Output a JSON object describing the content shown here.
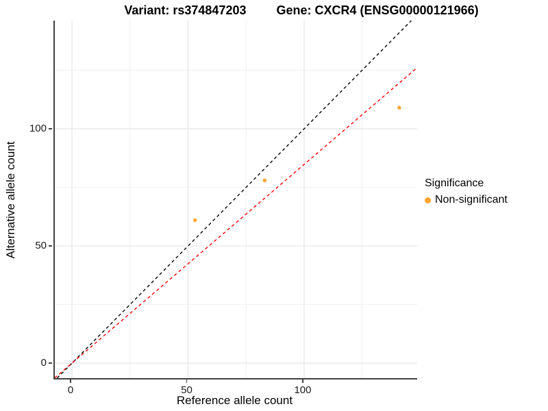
{
  "figure": {
    "title_left": "Variant: rs374847203",
    "title_right": "Gene: CXCR4 (ENSG00000121966)"
  },
  "axes": {
    "x_label": "Reference allele count",
    "y_label": "Alternative allele count"
  },
  "legend": {
    "title": "Significance",
    "entries": [
      {
        "label": "Non-significant",
        "color": "#FFA433"
      }
    ]
  },
  "colors": {
    "point": "#FFA433",
    "identity_line": "#000000",
    "fit_line": "#FF0000",
    "grid_major": "#e4e4e4",
    "grid_minor": "#efefef",
    "axis_line": "#3f3f3f",
    "background": "#ffffff"
  },
  "chart_data": {
    "type": "scatter",
    "title": "Variant: rs374847203        Gene: CXCR4 (ENSG00000121966)",
    "xlabel": "Reference allele count",
    "ylabel": "Alternative allele count",
    "series": [
      {
        "name": "Non-significant",
        "color": "#FFA433",
        "points": [
          {
            "x": 53,
            "y": 61
          },
          {
            "x": 83,
            "y": 78
          },
          {
            "x": 141,
            "y": 109
          }
        ]
      }
    ],
    "lines": [
      {
        "name": "identity-line",
        "slope": 1,
        "intercept": 0,
        "color": "#000000",
        "style": "dashed"
      },
      {
        "name": "fit-line",
        "slope": 0.848,
        "intercept": 0,
        "color": "#FF0000",
        "style": "dashed"
      }
    ],
    "x_ticks": [
      0,
      50,
      100
    ],
    "y_ticks": [
      0,
      50,
      100
    ],
    "x_minor_ticks": [
      25,
      75,
      125
    ],
    "y_minor_ticks": [
      25,
      75,
      125
    ],
    "xlim": [
      -7.4,
      148.7
    ],
    "ylim": [
      -6.4,
      146.2
    ],
    "grid": true,
    "legend_position": "right",
    "legend_title": "Significance"
  }
}
